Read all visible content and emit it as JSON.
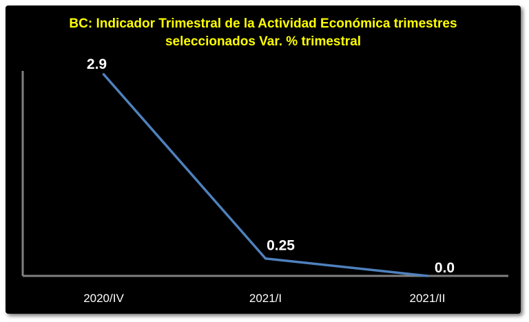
{
  "chart_data": {
    "type": "line",
    "title_lines": [
      "BC: Indicador Trimestral de la Actividad Económica trimestres",
      "seleccionados Var. % trimestral"
    ],
    "categories": [
      "2020/IV",
      "2021/I",
      "2021/II"
    ],
    "values": [
      2.9,
      0.25,
      0.0
    ],
    "data_labels": [
      "2.9",
      "0.25",
      "0.0"
    ],
    "ylim": [
      0,
      2.9
    ],
    "grid": false,
    "legend": "none",
    "colors": {
      "background": "#000000",
      "title": "#ffff00",
      "line": "#4f81bd",
      "axis": "#808080",
      "text": "#ffffff"
    }
  }
}
